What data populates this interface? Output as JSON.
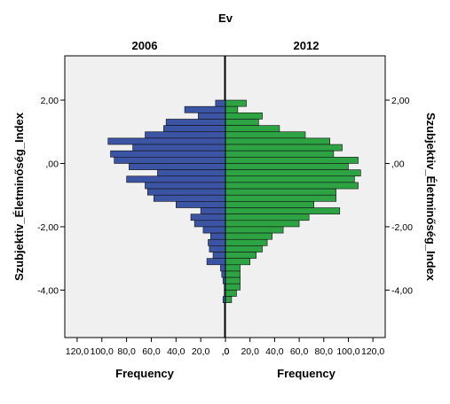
{
  "chart_data": {
    "type": "bar",
    "orientation": "horizontal",
    "layout": "population-pyramid",
    "title": "Ev",
    "xlabel": "Frequency",
    "ylabel": "Szubjektiv_Életminőség_Index",
    "ylim": [
      -5.5,
      3.4
    ],
    "y_ticks": [
      2.0,
      0.0,
      -2.0,
      -4.0
    ],
    "y_tick_labels": [
      "2,00",
      ",00",
      "-2,00",
      "-4,00"
    ],
    "bin_width": 0.2,
    "grid": false,
    "background_color": "#f0f0f0",
    "panels": [
      {
        "name": "2006",
        "direction": "left",
        "color": "#3b54a3",
        "xlim": [
          0,
          130
        ],
        "x_ticks": [
          120,
          100,
          80,
          60,
          40,
          20,
          0
        ],
        "x_tick_labels": [
          "120,0",
          "100,0",
          "80,0",
          "60,0",
          "40,0",
          "20,0",
          ",0"
        ],
        "bins": [
          {
            "y": 1.9,
            "v": 8
          },
          {
            "y": 1.7,
            "v": 33
          },
          {
            "y": 1.5,
            "v": 22
          },
          {
            "y": 1.3,
            "v": 48
          },
          {
            "y": 1.1,
            "v": 50
          },
          {
            "y": 0.9,
            "v": 65
          },
          {
            "y": 0.7,
            "v": 95
          },
          {
            "y": 0.5,
            "v": 75
          },
          {
            "y": 0.3,
            "v": 93
          },
          {
            "y": 0.1,
            "v": 90
          },
          {
            "y": -0.1,
            "v": 78
          },
          {
            "y": -0.3,
            "v": 55
          },
          {
            "y": -0.5,
            "v": 80
          },
          {
            "y": -0.7,
            "v": 65
          },
          {
            "y": -0.9,
            "v": 63
          },
          {
            "y": -1.1,
            "v": 58
          },
          {
            "y": -1.3,
            "v": 40
          },
          {
            "y": -1.5,
            "v": 20
          },
          {
            "y": -1.7,
            "v": 28
          },
          {
            "y": -1.9,
            "v": 25
          },
          {
            "y": -2.1,
            "v": 18
          },
          {
            "y": -2.3,
            "v": 12
          },
          {
            "y": -2.5,
            "v": 14
          },
          {
            "y": -2.7,
            "v": 13
          },
          {
            "y": -2.9,
            "v": 10
          },
          {
            "y": -3.1,
            "v": 15
          },
          {
            "y": -3.3,
            "v": 4
          },
          {
            "y": -3.5,
            "v": 3
          },
          {
            "y": -3.7,
            "v": 2
          },
          {
            "y": -3.9,
            "v": 1
          },
          {
            "y": -4.1,
            "v": 1
          },
          {
            "y": -4.3,
            "v": 2
          }
        ]
      },
      {
        "name": "2012",
        "direction": "right",
        "color": "#2da343",
        "xlim": [
          0,
          130
        ],
        "x_ticks": [
          0,
          20,
          40,
          60,
          80,
          100,
          120
        ],
        "x_tick_labels": [
          ",0",
          "20,0",
          "40,0",
          "60,0",
          "80,0",
          "100,0",
          "120,0"
        ],
        "bins": [
          {
            "y": 1.9,
            "v": 17
          },
          {
            "y": 1.7,
            "v": 10
          },
          {
            "y": 1.5,
            "v": 30
          },
          {
            "y": 1.3,
            "v": 27
          },
          {
            "y": 1.1,
            "v": 44
          },
          {
            "y": 0.9,
            "v": 65
          },
          {
            "y": 0.7,
            "v": 85
          },
          {
            "y": 0.5,
            "v": 95
          },
          {
            "y": 0.3,
            "v": 88
          },
          {
            "y": 0.1,
            "v": 108
          },
          {
            "y": -0.1,
            "v": 100
          },
          {
            "y": -0.3,
            "v": 110
          },
          {
            "y": -0.5,
            "v": 105
          },
          {
            "y": -0.7,
            "v": 108
          },
          {
            "y": -0.9,
            "v": 90
          },
          {
            "y": -1.1,
            "v": 90
          },
          {
            "y": -1.3,
            "v": 72
          },
          {
            "y": -1.5,
            "v": 93
          },
          {
            "y": -1.7,
            "v": 68
          },
          {
            "y": -1.9,
            "v": 60
          },
          {
            "y": -2.1,
            "v": 47
          },
          {
            "y": -2.3,
            "v": 38
          },
          {
            "y": -2.5,
            "v": 34
          },
          {
            "y": -2.7,
            "v": 30
          },
          {
            "y": -2.9,
            "v": 25
          },
          {
            "y": -3.1,
            "v": 20
          },
          {
            "y": -3.3,
            "v": 12
          },
          {
            "y": -3.5,
            "v": 12
          },
          {
            "y": -3.7,
            "v": 12
          },
          {
            "y": -3.9,
            "v": 12
          },
          {
            "y": -4.1,
            "v": 9
          },
          {
            "y": -4.3,
            "v": 5
          }
        ]
      }
    ]
  }
}
